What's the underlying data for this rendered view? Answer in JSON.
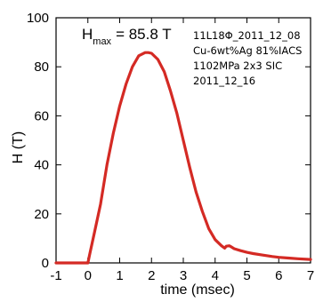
{
  "chart_data": {
    "type": "line",
    "xlabel": "time (msec)",
    "ylabel": "H (T)",
    "xlim": [
      -1,
      7
    ],
    "ylim": [
      0,
      100
    ],
    "x_ticks": [
      -1,
      0,
      1,
      2,
      3,
      4,
      5,
      6,
      7
    ],
    "y_ticks": [
      0,
      20,
      40,
      60,
      80,
      100
    ],
    "grid": false,
    "series_color": "#d42a24",
    "annotation_main": {
      "symbol": "H",
      "subscript": "max",
      "value_text": "= 85.8 T"
    },
    "annotation_lines": [
      "11L18Φ_2011_12_08",
      "Cu-6wt%Ag 81%IACS",
      "1102MPa 2x3 SIC",
      "2011_12_16"
    ],
    "series": [
      {
        "x": [
          -1.0,
          0.0,
          0.05,
          0.2,
          0.4,
          0.6,
          0.8,
          1.0,
          1.2,
          1.4,
          1.6,
          1.8,
          1.9,
          2.0,
          2.2,
          2.4,
          2.6,
          2.8,
          3.0,
          3.2,
          3.4,
          3.6,
          3.8,
          4.0,
          4.2,
          4.3,
          4.35,
          4.45,
          4.5,
          4.6,
          4.8,
          5.0,
          5.2,
          5.5,
          5.8,
          6.0,
          6.3,
          6.6,
          7.0
        ],
        "y": [
          0.0,
          0.0,
          3.0,
          12.0,
          24.0,
          40.0,
          53.0,
          64.0,
          73.0,
          80.0,
          84.5,
          85.8,
          85.8,
          85.5,
          83.0,
          78.0,
          70.0,
          61.0,
          50.0,
          39.0,
          29.0,
          21.0,
          14.0,
          9.5,
          7.0,
          6.0,
          6.8,
          7.0,
          6.6,
          5.8,
          5.0,
          4.3,
          3.8,
          3.2,
          2.6,
          2.3,
          2.0,
          1.7,
          1.4
        ]
      }
    ]
  }
}
